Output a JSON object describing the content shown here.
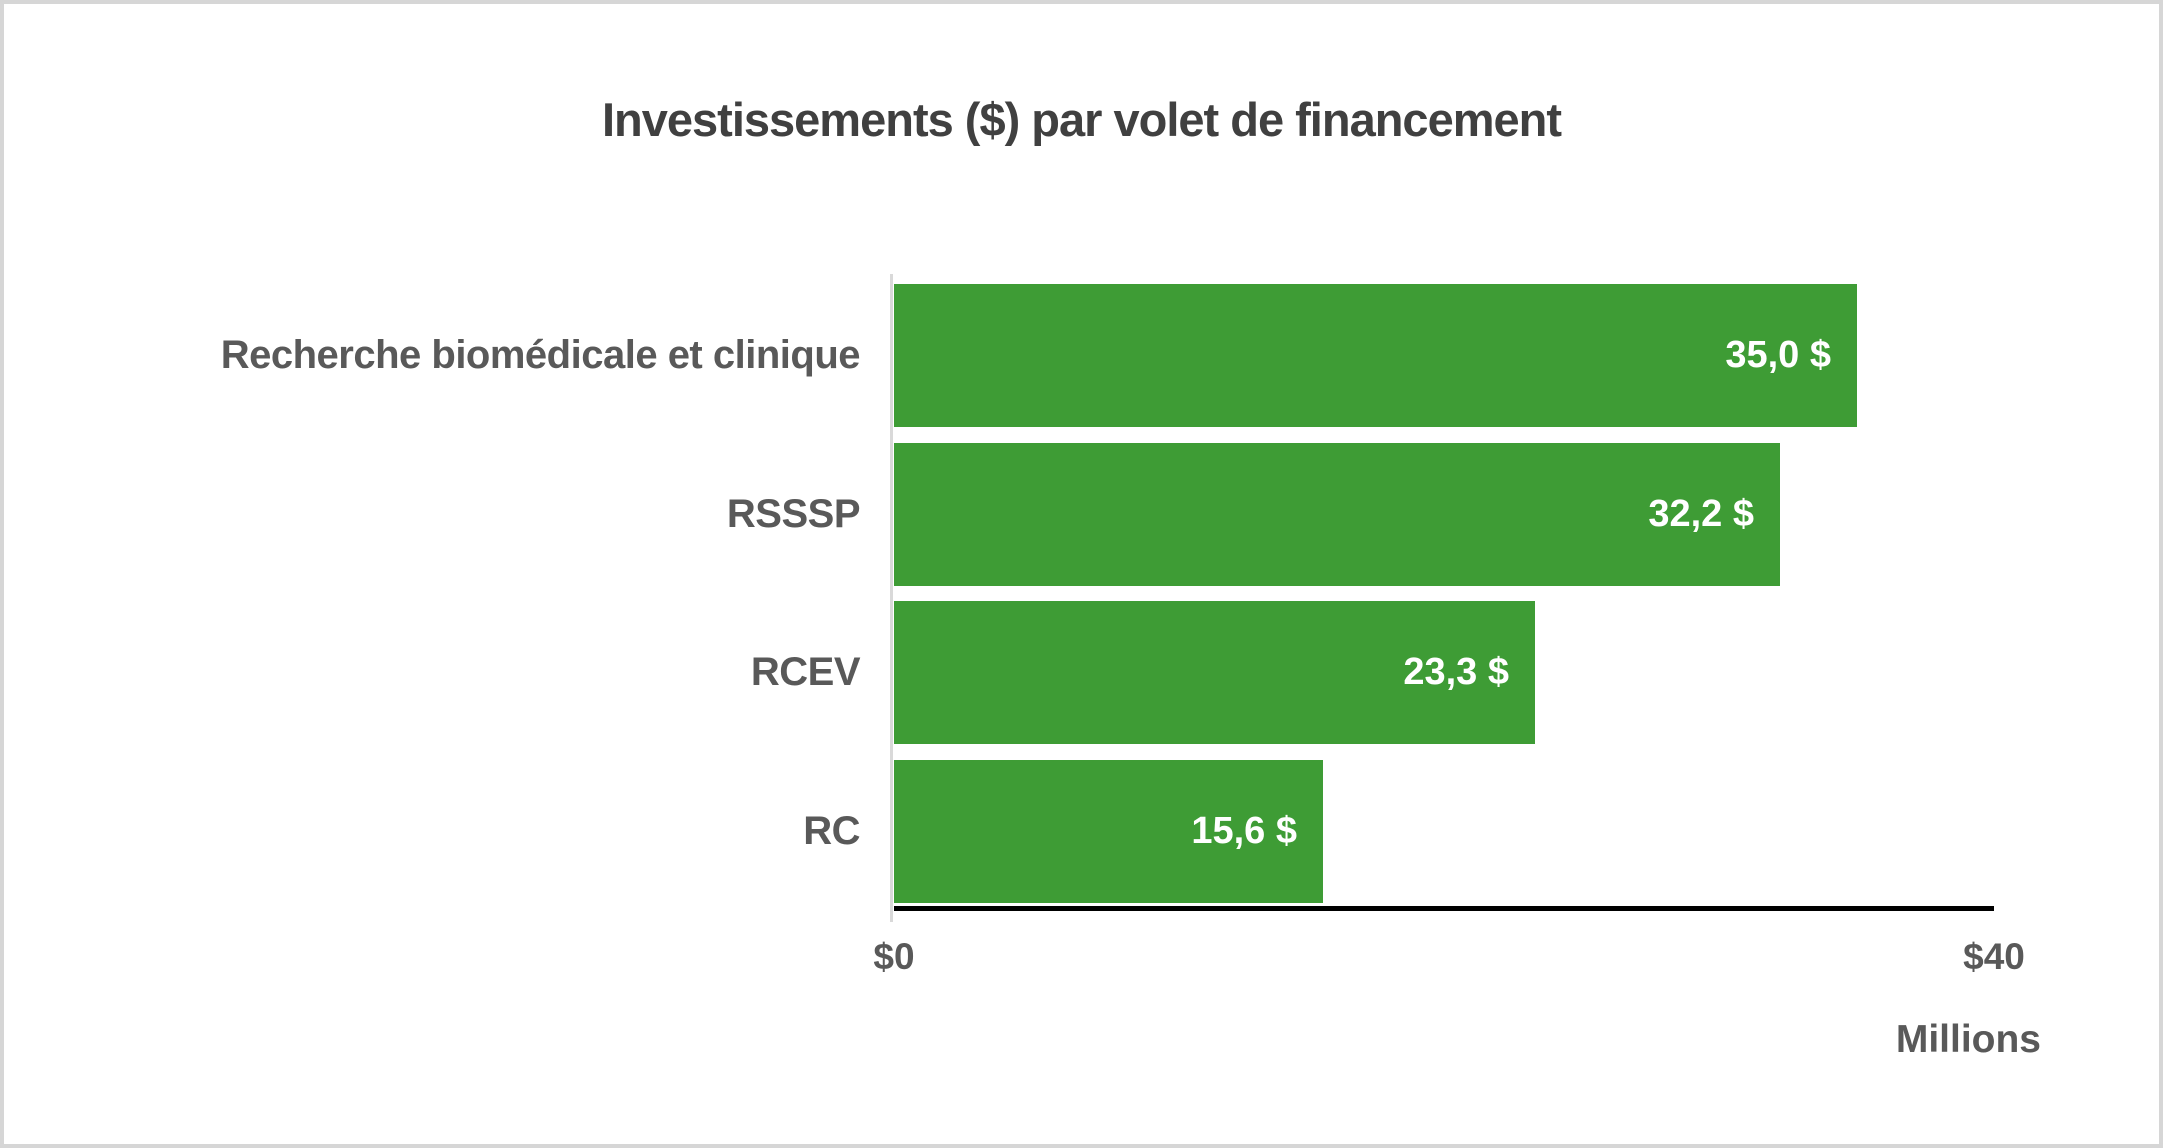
{
  "chart_data": {
    "type": "bar",
    "orientation": "horizontal",
    "title": "Investissements ($) par volet de financement",
    "categories": [
      "Recherche biomédicale et clinique",
      "RSSSP",
      "RCEV",
      "RC"
    ],
    "values": [
      35.0,
      32.2,
      23.3,
      15.6
    ],
    "value_labels": [
      "35,0 $",
      "32,2 $",
      "23,3 $",
      "15,6 $"
    ],
    "x_axis": {
      "min": 0,
      "max": 40,
      "tick_labels": [
        "$0",
        "$40"
      ],
      "unit_label": "Millions"
    },
    "legend": "none",
    "grid": "off",
    "colors": {
      "bar": "#3E9C35",
      "value_label": "#ffffff",
      "title": "#404040",
      "axis_text": "#595959",
      "x_axis_line": "#000000",
      "y_axis_line": "#d9d9d9",
      "frame_border": "#d6d6d6",
      "background": "#ffffff"
    }
  }
}
